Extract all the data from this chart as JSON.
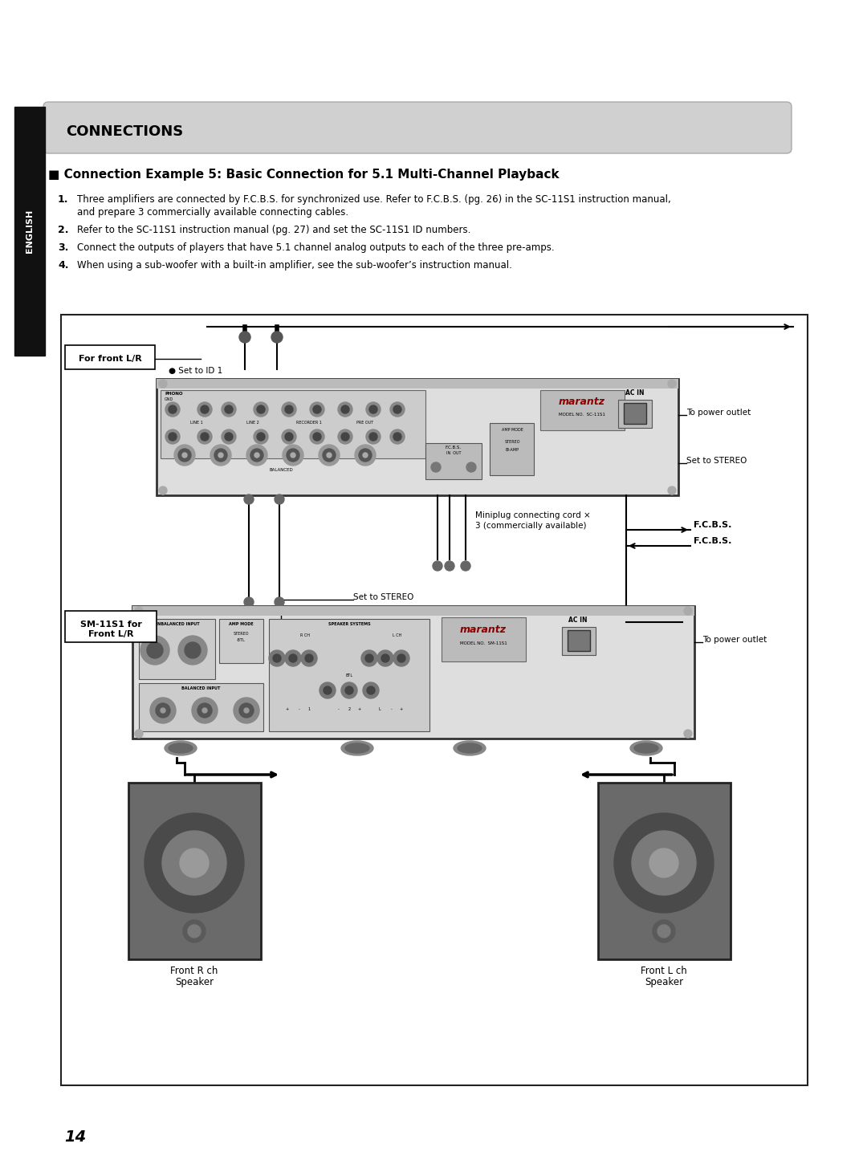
{
  "bg_color": "#ffffff",
  "page_number": "14",
  "sidebar_color": "#111111",
  "sidebar_text": "ENGLISH",
  "header_bg": "#d0d0d0",
  "header_text": "CONNECTIONS",
  "section_title": "■ Connection Example 5: Basic Connection for 5.1 Multi-Channel Playback",
  "bullet1_pre": "Three amplifiers are connected by F.C.B.S. for synchronized use. Refer to ",
  "bullet1_bold": "F.C.B.S.",
  "bullet1_post": " (pg. 26) in the SC-11S1 instruction manual,",
  "bullet1_line2": "and prepare 3 commercially available connecting cables.",
  "bullet2": "Refer to the SC-11S1 instruction manual (pg. 27) and set the SC-11S1 ID numbers.",
  "bullet3": "Connect the outputs of players that have 5.1 channel analog outputs to each of the three pre-amps.",
  "bullet4": "When using a sub-woofer with a built-in amplifier, see the sub-woofer’s instruction manual.",
  "label_for_front": "For front L/R",
  "label_set_id1": "● Set to ID 1",
  "label_sm11s1_line1": "SM-11S1 for",
  "label_sm11s1_line2": "Front L/R",
  "label_set_stereo": "Set to STEREO",
  "label_to_outlet": "To power outlet",
  "label_miniplug_line1": "Miniplug connecting cord ×",
  "label_miniplug_line2": "3 (commercially available)",
  "label_fcbs": "F.C.B.S.",
  "label_front_r_line1": "Front R ch",
  "label_front_r_line2": "Speaker",
  "label_front_l_line1": "Front L ch",
  "label_front_l_line2": "Speaker",
  "device_face": "#e0e0e0",
  "device_dark": "#888888",
  "device_border": "#444444"
}
